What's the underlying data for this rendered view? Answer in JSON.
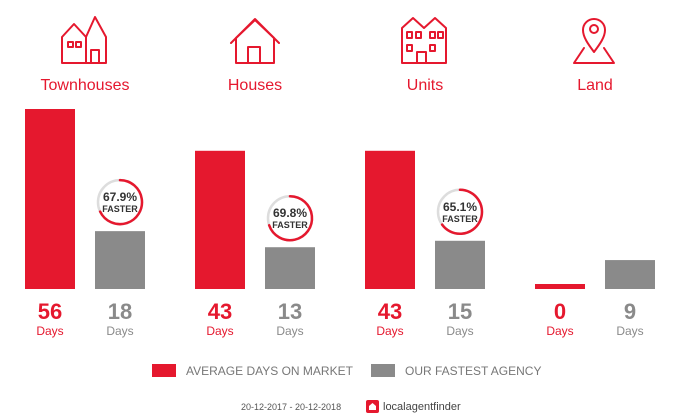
{
  "chart_data": {
    "type": "bar",
    "categories": [
      "Townhouses",
      "Houses",
      "Units",
      "Land"
    ],
    "series": [
      {
        "name": "AVERAGE DAYS ON MARKET",
        "values": [
          56,
          43,
          43,
          0
        ]
      },
      {
        "name": "OUR FASTEST AGENCY",
        "values": [
          18,
          13,
          15,
          9
        ]
      }
    ],
    "value_unit": "Days",
    "badges": [
      {
        "category": "Townhouses",
        "percent": "67.9%",
        "text": "FASTER",
        "fraction": 0.679
      },
      {
        "category": "Houses",
        "percent": "69.8%",
        "text": "FASTER",
        "fraction": 0.698
      },
      {
        "category": "Units",
        "percent": "65.1%",
        "text": "FASTER",
        "fraction": 0.651
      }
    ],
    "ylim": [
      0,
      56
    ],
    "grid": false,
    "legend_position": "bottom"
  },
  "icons": [
    "townhouse-icon",
    "house-icon",
    "units-icon",
    "land-pin-icon"
  ],
  "colors": {
    "market": "#e5182e",
    "agency": "#8a8a8a",
    "badge_ring_bg": "#dddddd"
  },
  "footer": {
    "date_range": "20-12-2017 - 20-12-2018",
    "brand": "localagentfinder"
  }
}
